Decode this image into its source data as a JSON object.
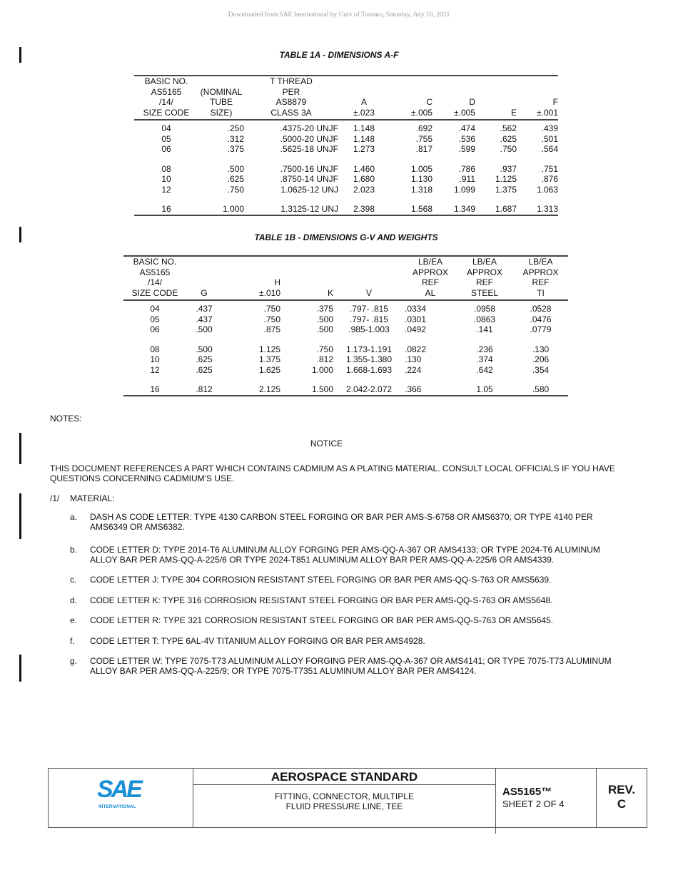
{
  "watermark": "Downloaded from SAE International by Univ of Toronto, Saturday, July 10, 2021",
  "table1a": {
    "title": "TABLE 1A - DIMENSIONS A-F",
    "headers": [
      [
        "BASIC NO.",
        "AS5165",
        "/14/",
        "SIZE CODE"
      ],
      [
        "(NOMINAL",
        "TUBE",
        "SIZE)"
      ],
      [
        "T THREAD",
        "PER",
        "AS8879",
        "CLASS 3A"
      ],
      [
        "A",
        "±.023"
      ],
      [
        "C",
        "±.005"
      ],
      [
        "D",
        "±.005"
      ],
      [
        "E"
      ],
      [
        "F",
        "±.001"
      ]
    ],
    "rows": [
      [
        "04",
        ".250",
        ".4375-20 UNJF",
        "1.148",
        ".692",
        ".474",
        ".562",
        ".439"
      ],
      [
        "05",
        ".312",
        ".5000-20 UNJF",
        "1.148",
        ".755",
        ".536",
        ".625",
        ".501"
      ],
      [
        "06",
        ".375",
        ".5625-18 UNJF",
        "1.273",
        ".817",
        ".599",
        ".750",
        ".564"
      ],
      [
        "08",
        ".500",
        ".7500-16 UNJF",
        "1.460",
        "1.005",
        ".786",
        ".937",
        ".751"
      ],
      [
        "10",
        ".625",
        ".8750-14 UNJF",
        "1.680",
        "1.130",
        ".911",
        "1.125",
        ".876"
      ],
      [
        "12",
        ".750",
        "1.0625-12 UNJ",
        "2.023",
        "1.318",
        "1.099",
        "1.375",
        "1.063"
      ],
      [
        "16",
        "1.000",
        "1.3125-12 UNJ",
        "2.398",
        "1.568",
        "1.349",
        "1.687",
        "1.313"
      ]
    ]
  },
  "table1b": {
    "title": "TABLE 1B - DIMENSIONS G-V AND WEIGHTS",
    "headers": [
      [
        "BASIC NO.",
        "AS5165",
        "/14/",
        "SIZE CODE"
      ],
      [
        "G"
      ],
      [
        "H",
        "±.010"
      ],
      [
        "K"
      ],
      [
        "V"
      ],
      [
        "LB/EA",
        "APPROX",
        "REF",
        "AL"
      ],
      [
        "LB/EA",
        "APPROX",
        "REF",
        "STEEL"
      ],
      [
        "LB/EA",
        "APPROX",
        "REF",
        "TI"
      ]
    ],
    "rows": [
      [
        "04",
        ".437",
        ".750",
        ".375",
        ".797-  .815",
        ".0334",
        ".0958",
        ".0528"
      ],
      [
        "05",
        ".437",
        ".750",
        ".500",
        ".797-  .815",
        ".0301",
        ".0863",
        ".0476"
      ],
      [
        "06",
        ".500",
        ".875",
        ".500",
        ".985-1.003",
        ".0492",
        ".141",
        ".0779"
      ],
      [
        "08",
        ".500",
        "1.125",
        ".750",
        "1.173-1.191",
        ".0822",
        ".236",
        ".130"
      ],
      [
        "10",
        ".625",
        "1.375",
        ".812",
        "1.355-1.380",
        ".130",
        ".374",
        ".206"
      ],
      [
        "12",
        ".625",
        "1.625",
        "1.000",
        "1.668-1.693",
        ".224",
        ".642",
        ".354"
      ],
      [
        "16",
        ".812",
        "2.125",
        "1.500",
        "2.042-2.072",
        ".366",
        "1.05",
        ".580"
      ]
    ]
  },
  "notes": {
    "label": "NOTES:",
    "notice_title": "NOTICE",
    "notice_text": "THIS DOCUMENT REFERENCES A PART WHICH CONTAINS CADMIUM AS A PLATING MATERIAL. CONSULT LOCAL OFFICIALS IF YOU HAVE QUESTIONS CONCERNING CADMIUM'S USE.",
    "material_ref": "/1/",
    "material_label": "MATERIAL:",
    "items": [
      {
        "letter": "a.",
        "text": "DASH AS CODE LETTER: TYPE 4130 CARBON STEEL FORGING OR BAR PER AMS-S-6758 OR AMS6370; OR TYPE 4140 PER AMS6349 OR AMS6382."
      },
      {
        "letter": "b.",
        "text": "CODE LETTER D: TYPE 2014-T6 ALUMINUM ALLOY FORGING PER AMS-QQ-A-367 OR AMS4133; OR TYPE 2024-T6 ALUMINUM ALLOY BAR PER AMS-QQ-A-225/6 OR TYPE 2024-T851 ALUMINUM ALLOY BAR PER AMS-QQ-A-225/6 OR AMS4339."
      },
      {
        "letter": "c.",
        "text": "CODE LETTER J: TYPE 304 CORROSION RESISTANT STEEL FORGING OR BAR PER AMS-QQ-S-763 OR AMS5639."
      },
      {
        "letter": "d.",
        "text": "CODE LETTER K: TYPE 316 CORROSION RESISTANT STEEL FORGING OR BAR PER AMS-QQ-S-763 OR AMS5648."
      },
      {
        "letter": "e.",
        "text": "CODE LETTER R: TYPE 321 CORROSION RESISTANT STEEL FORGING OR BAR PER AMS-QQ-S-763 OR AMS5645."
      },
      {
        "letter": "f.",
        "text": "CODE LETTER T: TYPE 6AL-4V TITANIUM ALLOY FORGING OR BAR PER AMS4928."
      },
      {
        "letter": "g.",
        "text": "CODE LETTER W: TYPE 7075-T73 ALUMINUM ALLOY FORGING PER AMS-QQ-A-367 OR AMS4141; OR TYPE 7075-T73 ALUMINUM ALLOY BAR PER AMS-QQ-A-225/9; OR TYPE 7075-T7351 ALUMINUM ALLOY BAR PER AMS4124."
      }
    ]
  },
  "title_block": {
    "logo_text": "SAE",
    "logo_sub": "INTERNATIONAL",
    "logo_color": "#1a8fd6",
    "heading": "AEROSPACE STANDARD",
    "description_line1": "FITTING, CONNECTOR, MULTIPLE",
    "description_line2": "FLUID PRESSURE LINE, TEE",
    "doc_number": "AS5165™",
    "sheet": "SHEET 2 OF 4",
    "rev_label": "REV.",
    "rev": "C"
  }
}
